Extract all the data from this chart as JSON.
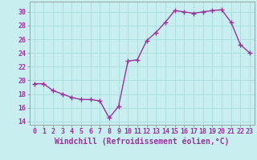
{
  "x": [
    0,
    1,
    2,
    3,
    4,
    5,
    6,
    7,
    8,
    9,
    10,
    11,
    12,
    13,
    14,
    15,
    16,
    17,
    18,
    19,
    20,
    21,
    22,
    23
  ],
  "y": [
    19.5,
    19.5,
    18.5,
    18.0,
    17.5,
    17.2,
    17.2,
    17.0,
    14.5,
    16.2,
    22.8,
    23.0,
    25.8,
    27.0,
    28.5,
    30.2,
    30.0,
    29.8,
    30.0,
    30.2,
    30.3,
    28.5,
    25.2,
    24.0
  ],
  "line_color": "#993399",
  "marker": "+",
  "marker_size": 4,
  "bg_color": "#c8eef0",
  "grid_color": "#aadddd",
  "xlabel": "Windchill (Refroidissement éolien,°C)",
  "ylim": [
    13.5,
    31.5
  ],
  "yticks": [
    14,
    16,
    18,
    20,
    22,
    24,
    26,
    28,
    30
  ],
  "xlim": [
    -0.5,
    23.5
  ],
  "xticks": [
    0,
    1,
    2,
    3,
    4,
    5,
    6,
    7,
    8,
    9,
    10,
    11,
    12,
    13,
    14,
    15,
    16,
    17,
    18,
    19,
    20,
    21,
    22,
    23
  ],
  "tick_fontsize": 6,
  "xlabel_fontsize": 7,
  "line_width": 1.0
}
